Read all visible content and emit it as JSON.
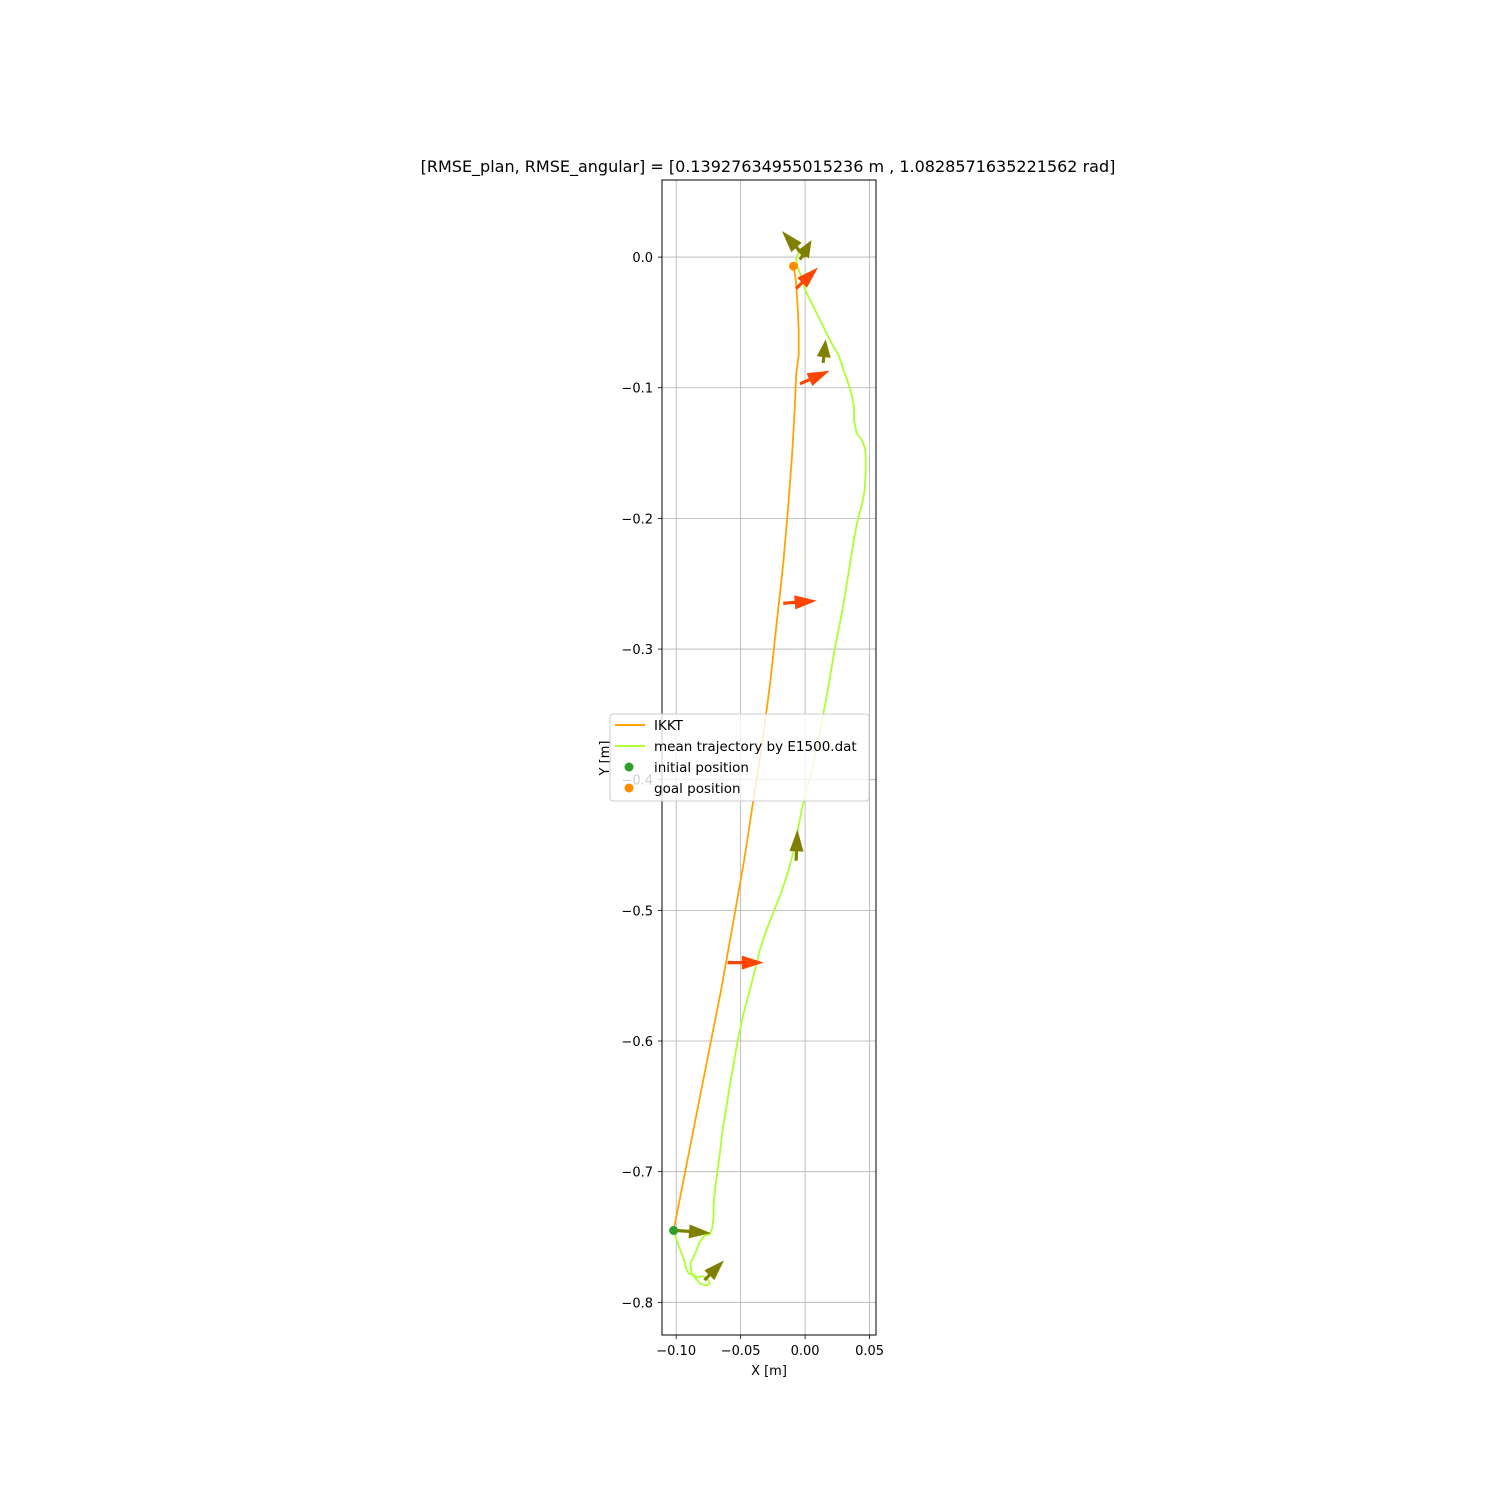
{
  "chart_data": {
    "type": "line",
    "title": "[RMSE_plan, RMSE_angular] = [0.13927634955015236 m , 1.0828571635221562 rad]",
    "xlabel": "X [m]",
    "ylabel": "Y [m]",
    "xlim": [
      -0.111,
      0.055
    ],
    "ylim": [
      -0.825,
      0.059
    ],
    "xticks": [
      -0.1,
      -0.05,
      0.0,
      0.05
    ],
    "xtick_labels": [
      "−0.10",
      "−0.05",
      "0.00",
      "0.05"
    ],
    "yticks": [
      0.0,
      -0.1,
      -0.2,
      -0.3,
      -0.4,
      -0.5,
      -0.6,
      -0.7,
      -0.8
    ],
    "ytick_labels": [
      "0.0",
      "−0.1",
      "−0.2",
      "−0.3",
      "−0.4",
      "−0.5",
      "−0.6",
      "−0.7",
      "−0.8"
    ],
    "grid": true,
    "legend_position": "center-left",
    "series": [
      {
        "name": "IKKT",
        "kind": "line",
        "color": "#ffa500",
        "x": [
          -0.102,
          -0.095,
          -0.085,
          -0.075,
          -0.065,
          -0.055,
          -0.047,
          -0.04,
          -0.033,
          -0.027,
          -0.022,
          -0.017,
          -0.013,
          -0.01,
          -0.008,
          -0.007,
          -0.005,
          -0.005,
          -0.006,
          -0.007,
          -0.008,
          -0.009
        ],
        "y": [
          -0.745,
          -0.71,
          -0.66,
          -0.61,
          -0.56,
          -0.505,
          -0.46,
          -0.415,
          -0.37,
          -0.325,
          -0.28,
          -0.235,
          -0.19,
          -0.15,
          -0.115,
          -0.09,
          -0.075,
          -0.055,
          -0.035,
          -0.02,
          -0.012,
          -0.007
        ]
      },
      {
        "name": "mean trajectory by E1500.dat",
        "kind": "line",
        "color": "#adff2f",
        "x": [
          -0.102,
          -0.098,
          -0.094,
          -0.092,
          -0.09,
          -0.087,
          -0.085,
          -0.083,
          -0.08,
          -0.077,
          -0.075,
          -0.074,
          -0.076,
          -0.081,
          -0.088,
          -0.089,
          -0.085,
          -0.082,
          -0.078,
          -0.074,
          -0.072,
          -0.071,
          -0.071,
          -0.07,
          -0.068,
          -0.066,
          -0.064,
          -0.061,
          -0.058,
          -0.055,
          -0.052,
          -0.048,
          -0.044,
          -0.04,
          -0.035,
          -0.03,
          -0.024,
          -0.018,
          -0.013,
          -0.009,
          -0.006,
          -0.003,
          0.001,
          0.006,
          0.011,
          0.017,
          0.023,
          0.029,
          0.034,
          0.038,
          0.041,
          0.044,
          0.046,
          0.047,
          0.047,
          0.046,
          0.044,
          0.04,
          0.038,
          0.038,
          0.036,
          0.033,
          0.03,
          0.026,
          0.02,
          0.015,
          0.01,
          0.005,
          0.0,
          -0.002,
          -0.004,
          -0.006,
          -0.007,
          -0.006,
          -0.004,
          -0.002,
          0.0
        ],
        "y": [
          -0.745,
          -0.757,
          -0.767,
          -0.775,
          -0.778,
          -0.779,
          -0.78,
          -0.781,
          -0.78,
          -0.781,
          -0.783,
          -0.786,
          -0.787,
          -0.786,
          -0.778,
          -0.77,
          -0.762,
          -0.754,
          -0.749,
          -0.748,
          -0.743,
          -0.735,
          -0.725,
          -0.714,
          -0.7,
          -0.685,
          -0.668,
          -0.65,
          -0.632,
          -0.615,
          -0.598,
          -0.58,
          -0.565,
          -0.55,
          -0.53,
          -0.515,
          -0.5,
          -0.485,
          -0.47,
          -0.455,
          -0.44,
          -0.425,
          -0.408,
          -0.39,
          -0.365,
          -0.335,
          -0.3,
          -0.27,
          -0.24,
          -0.215,
          -0.2,
          -0.19,
          -0.18,
          -0.165,
          -0.15,
          -0.145,
          -0.14,
          -0.135,
          -0.125,
          -0.115,
          -0.105,
          -0.095,
          -0.087,
          -0.075,
          -0.065,
          -0.055,
          -0.045,
          -0.035,
          -0.025,
          -0.018,
          -0.012,
          -0.007,
          -0.002,
          0.002,
          0.004,
          0.003,
          0.002
        ]
      },
      {
        "name": "initial position",
        "kind": "marker",
        "color": "#2ca02c",
        "x": [
          -0.102
        ],
        "y": [
          -0.745
        ]
      },
      {
        "name": "goal position",
        "kind": "marker",
        "color": "#ff8c00",
        "x": [
          -0.009
        ],
        "y": [
          -0.007
        ]
      }
    ],
    "arrows": [
      {
        "group": "orientation-red",
        "color": "#ff4500",
        "x": -0.007,
        "y": -0.024,
        "dx": 0.017,
        "dy": 0.016
      },
      {
        "group": "orientation-red",
        "color": "#ff4500",
        "x": -0.004,
        "y": -0.097,
        "dx": 0.023,
        "dy": 0.01
      },
      {
        "group": "orientation-red",
        "color": "#ff4500",
        "x": -0.017,
        "y": -0.265,
        "dx": 0.026,
        "dy": 0.002
      },
      {
        "group": "orientation-red",
        "color": "#ff4500",
        "x": -0.06,
        "y": -0.54,
        "dx": 0.028,
        "dy": 0.0
      },
      {
        "group": "orientation-olive",
        "color": "#808000",
        "x": 0.0,
        "y": 0.0,
        "dx": -0.018,
        "dy": 0.02
      },
      {
        "group": "orientation-olive",
        "color": "#808000",
        "x": -0.004,
        "y": -0.002,
        "dx": 0.009,
        "dy": 0.015
      },
      {
        "group": "orientation-olive",
        "color": "#808000",
        "x": 0.014,
        "y": -0.081,
        "dx": 0.002,
        "dy": 0.018
      },
      {
        "group": "orientation-olive",
        "color": "#808000",
        "x": -0.007,
        "y": -0.462,
        "dx": 0.001,
        "dy": 0.024
      },
      {
        "group": "orientation-olive",
        "color": "#808000",
        "x": -0.1,
        "y": -0.745,
        "dx": 0.027,
        "dy": -0.002
      },
      {
        "group": "orientation-olive",
        "color": "#808000",
        "x": -0.078,
        "y": -0.783,
        "dx": 0.015,
        "dy": 0.015
      }
    ]
  }
}
